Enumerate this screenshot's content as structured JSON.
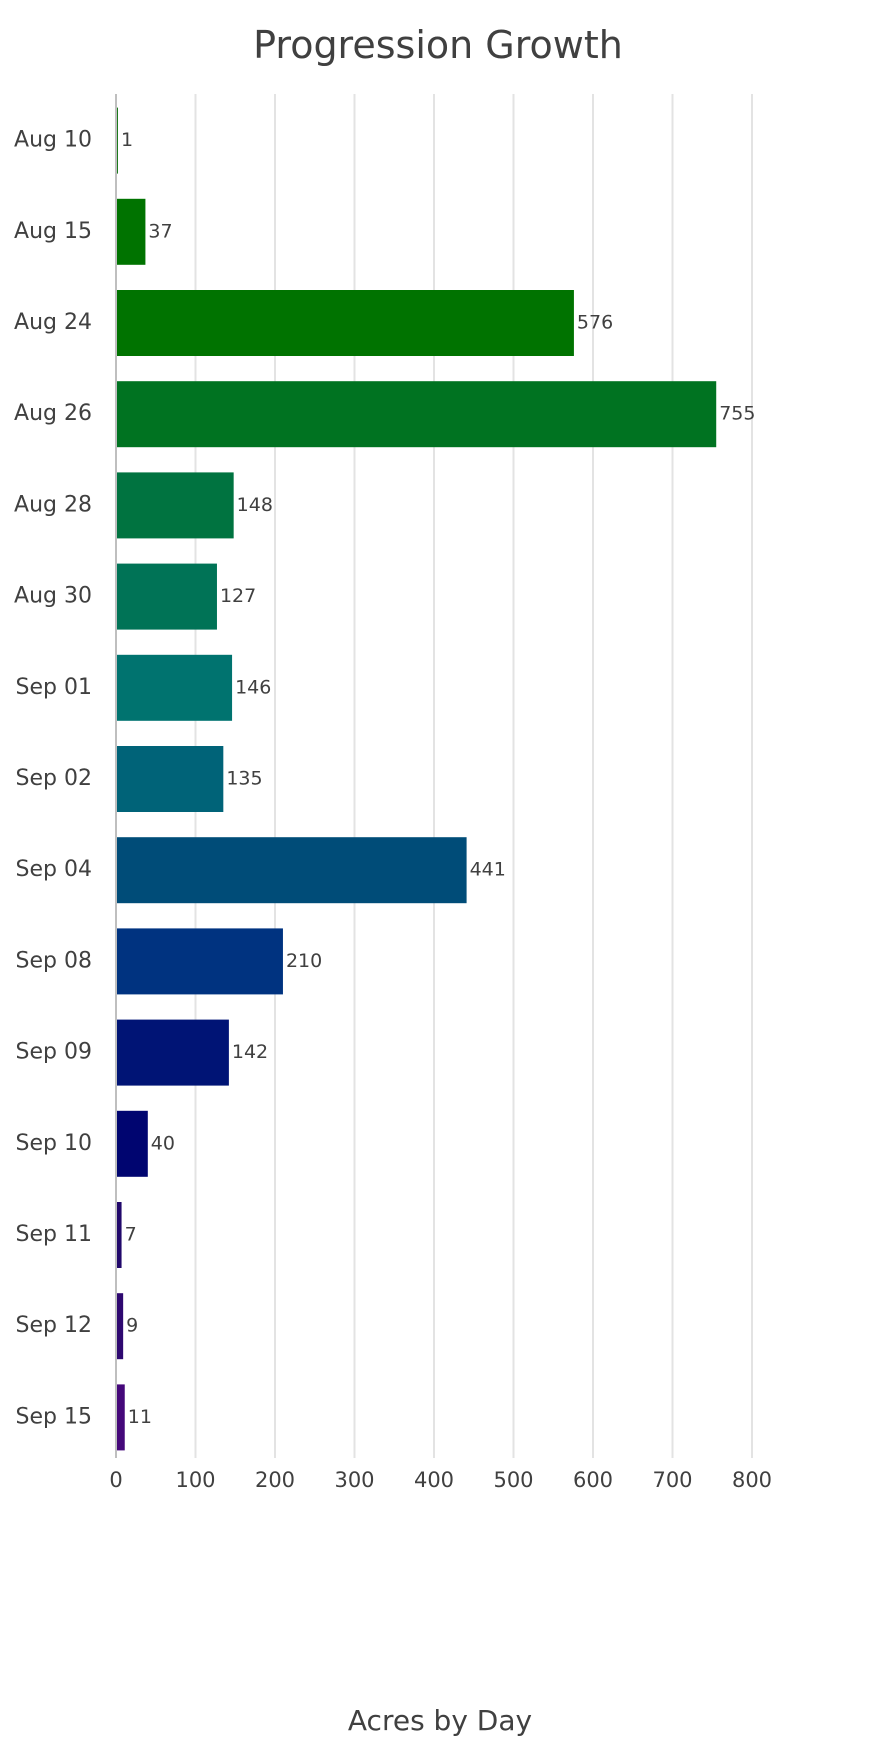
{
  "chart_data": {
    "type": "bar",
    "orientation": "horizontal",
    "title": "Progression Growth",
    "xlabel": "Acres by Day",
    "ylabel": "",
    "xlim": [
      0,
      800
    ],
    "x_ticks": [
      0,
      100,
      200,
      300,
      400,
      500,
      600,
      700,
      800
    ],
    "grid": true,
    "legend": "none",
    "categories": [
      "Aug 10",
      "Aug 15",
      "Aug 24",
      "Aug 26",
      "Aug 28",
      "Aug 30",
      "Sep 01",
      "Sep 02",
      "Sep 04",
      "Sep 08",
      "Sep 09",
      "Sep 10",
      "Sep 11",
      "Sep 12",
      "Sep 15"
    ],
    "values": [
      1,
      37,
      576,
      755,
      148,
      127,
      146,
      135,
      441,
      210,
      142,
      40,
      7,
      9,
      11
    ],
    "colors": [
      "#1c7a1c",
      "#007300",
      "#007300",
      "#007321",
      "#007340",
      "#007356",
      "#00736f",
      "#006378",
      "#004c78",
      "#003380",
      "#001475",
      "#000570",
      "#21086b",
      "#2e0870",
      "#45087a"
    ]
  }
}
